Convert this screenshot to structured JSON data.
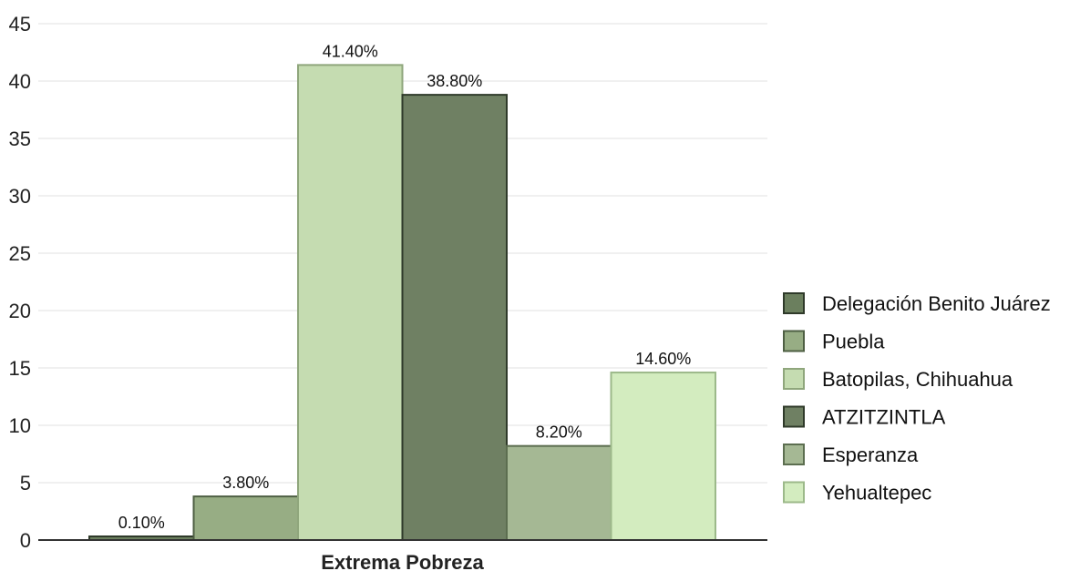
{
  "chart_data": {
    "type": "bar",
    "categories": [
      "Extrema Pobreza"
    ],
    "series": [
      {
        "name": "Delegación Benito Juárez",
        "values": [
          0.1
        ],
        "label": "0.10%",
        "color": "#6b7f5e",
        "border": "#2f3a2a"
      },
      {
        "name": "Puebla",
        "values": [
          3.8
        ],
        "label": "3.80%",
        "color": "#97ad84",
        "border": "#4e5f43"
      },
      {
        "name": "Batopilas, Chihuahua",
        "values": [
          41.4
        ],
        "label": "41.40%",
        "color": "#c5dcb1",
        "border": "#8fa67c"
      },
      {
        "name": "ATZITZINTLA",
        "values": [
          38.8
        ],
        "label": "38.80%",
        "color": "#6f8063",
        "border": "#2f3a2a"
      },
      {
        "name": "Esperanza",
        "values": [
          8.2
        ],
        "label": "8.20%",
        "color": "#a5b894",
        "border": "#5c6e50"
      },
      {
        "name": "Yehualtepec",
        "values": [
          14.6
        ],
        "label": "14.60%",
        "color": "#d3ecbf",
        "border": "#9cb98a"
      }
    ],
    "ylim": [
      0,
      45
    ],
    "yticks": [
      0,
      5,
      10,
      15,
      20,
      25,
      30,
      35,
      40,
      45
    ],
    "grid": true,
    "legend_position": "right",
    "title": "",
    "xlabel": "",
    "ylabel": ""
  }
}
